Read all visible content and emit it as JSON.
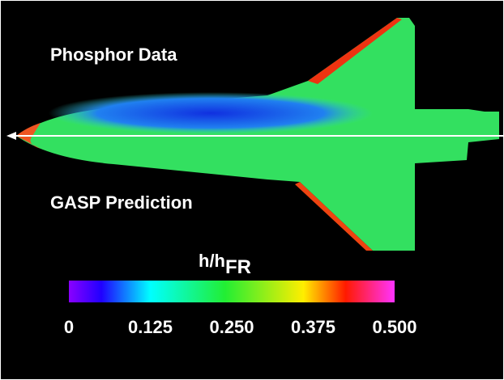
{
  "labels": {
    "top": "Phosphor Data",
    "bottom": "GASP Prediction"
  },
  "colorbar": {
    "title": "h/h",
    "title_sub": "FR",
    "range": [
      0,
      0.5
    ],
    "ticks": [
      0,
      {
        "value": 0.125,
        "label": "0.125"
      },
      {
        "value": 0.25,
        "label": "0.250"
      },
      {
        "value": 0.375,
        "label": "0.375"
      },
      {
        "value": 0.5,
        "label": "0.500"
      }
    ]
  }
}
